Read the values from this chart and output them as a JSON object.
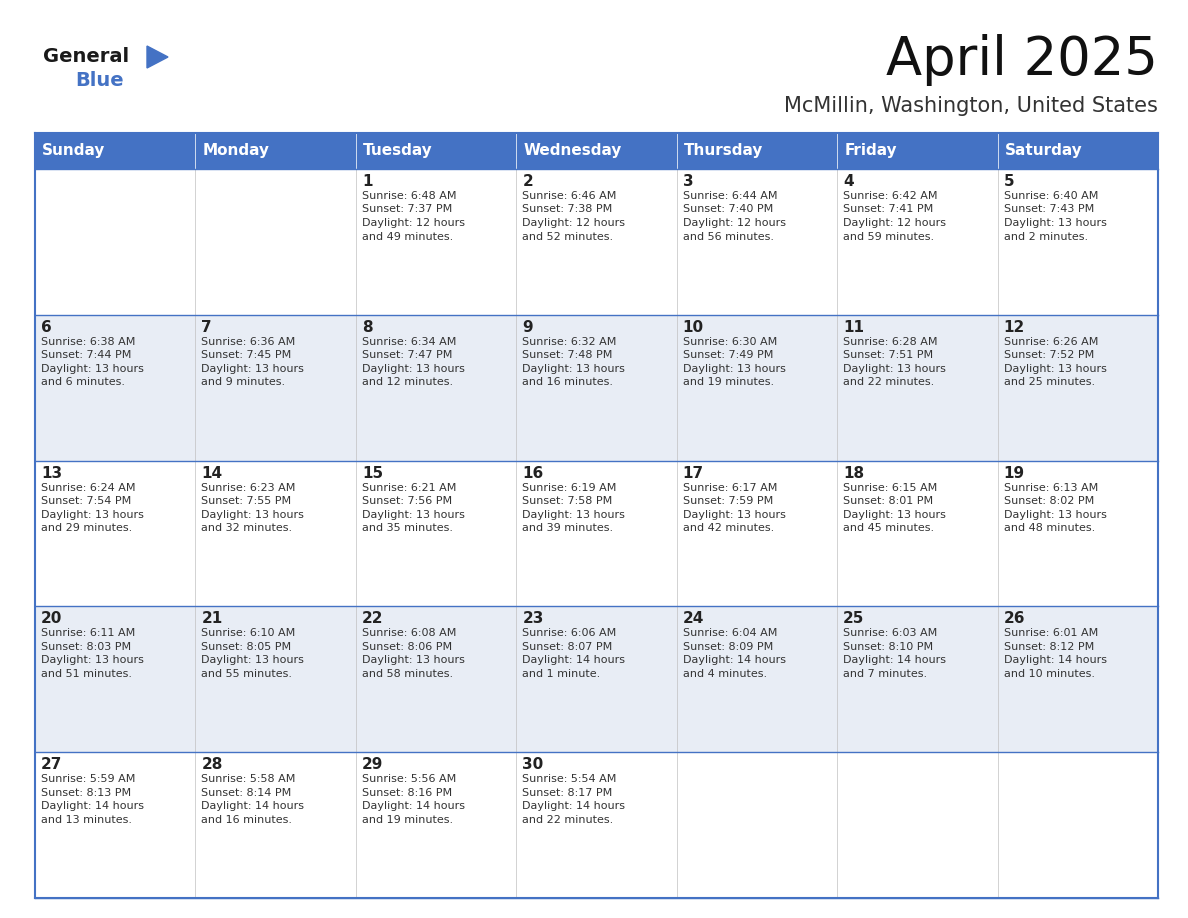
{
  "title": "April 2025",
  "subtitle": "McMillin, Washington, United States",
  "header_color": "#4472C4",
  "header_text_color": "#FFFFFF",
  "bg_color": "#FFFFFF",
  "row0_color": "#FFFFFF",
  "row1_color": "#E8EDF5",
  "border_color": "#4472C4",
  "cell_border_color": "#AAAAAA",
  "days_of_week": [
    "Sunday",
    "Monday",
    "Tuesday",
    "Wednesday",
    "Thursday",
    "Friday",
    "Saturday"
  ],
  "title_fontsize": 38,
  "subtitle_fontsize": 15,
  "day_num_fontsize": 11,
  "info_fontsize": 8,
  "header_fontsize": 11,
  "calendar": [
    [
      {
        "day": "",
        "info": ""
      },
      {
        "day": "",
        "info": ""
      },
      {
        "day": "1",
        "info": "Sunrise: 6:48 AM\nSunset: 7:37 PM\nDaylight: 12 hours\nand 49 minutes."
      },
      {
        "day": "2",
        "info": "Sunrise: 6:46 AM\nSunset: 7:38 PM\nDaylight: 12 hours\nand 52 minutes."
      },
      {
        "day": "3",
        "info": "Sunrise: 6:44 AM\nSunset: 7:40 PM\nDaylight: 12 hours\nand 56 minutes."
      },
      {
        "day": "4",
        "info": "Sunrise: 6:42 AM\nSunset: 7:41 PM\nDaylight: 12 hours\nand 59 minutes."
      },
      {
        "day": "5",
        "info": "Sunrise: 6:40 AM\nSunset: 7:43 PM\nDaylight: 13 hours\nand 2 minutes."
      }
    ],
    [
      {
        "day": "6",
        "info": "Sunrise: 6:38 AM\nSunset: 7:44 PM\nDaylight: 13 hours\nand 6 minutes."
      },
      {
        "day": "7",
        "info": "Sunrise: 6:36 AM\nSunset: 7:45 PM\nDaylight: 13 hours\nand 9 minutes."
      },
      {
        "day": "8",
        "info": "Sunrise: 6:34 AM\nSunset: 7:47 PM\nDaylight: 13 hours\nand 12 minutes."
      },
      {
        "day": "9",
        "info": "Sunrise: 6:32 AM\nSunset: 7:48 PM\nDaylight: 13 hours\nand 16 minutes."
      },
      {
        "day": "10",
        "info": "Sunrise: 6:30 AM\nSunset: 7:49 PM\nDaylight: 13 hours\nand 19 minutes."
      },
      {
        "day": "11",
        "info": "Sunrise: 6:28 AM\nSunset: 7:51 PM\nDaylight: 13 hours\nand 22 minutes."
      },
      {
        "day": "12",
        "info": "Sunrise: 6:26 AM\nSunset: 7:52 PM\nDaylight: 13 hours\nand 25 minutes."
      }
    ],
    [
      {
        "day": "13",
        "info": "Sunrise: 6:24 AM\nSunset: 7:54 PM\nDaylight: 13 hours\nand 29 minutes."
      },
      {
        "day": "14",
        "info": "Sunrise: 6:23 AM\nSunset: 7:55 PM\nDaylight: 13 hours\nand 32 minutes."
      },
      {
        "day": "15",
        "info": "Sunrise: 6:21 AM\nSunset: 7:56 PM\nDaylight: 13 hours\nand 35 minutes."
      },
      {
        "day": "16",
        "info": "Sunrise: 6:19 AM\nSunset: 7:58 PM\nDaylight: 13 hours\nand 39 minutes."
      },
      {
        "day": "17",
        "info": "Sunrise: 6:17 AM\nSunset: 7:59 PM\nDaylight: 13 hours\nand 42 minutes."
      },
      {
        "day": "18",
        "info": "Sunrise: 6:15 AM\nSunset: 8:01 PM\nDaylight: 13 hours\nand 45 minutes."
      },
      {
        "day": "19",
        "info": "Sunrise: 6:13 AM\nSunset: 8:02 PM\nDaylight: 13 hours\nand 48 minutes."
      }
    ],
    [
      {
        "day": "20",
        "info": "Sunrise: 6:11 AM\nSunset: 8:03 PM\nDaylight: 13 hours\nand 51 minutes."
      },
      {
        "day": "21",
        "info": "Sunrise: 6:10 AM\nSunset: 8:05 PM\nDaylight: 13 hours\nand 55 minutes."
      },
      {
        "day": "22",
        "info": "Sunrise: 6:08 AM\nSunset: 8:06 PM\nDaylight: 13 hours\nand 58 minutes."
      },
      {
        "day": "23",
        "info": "Sunrise: 6:06 AM\nSunset: 8:07 PM\nDaylight: 14 hours\nand 1 minute."
      },
      {
        "day": "24",
        "info": "Sunrise: 6:04 AM\nSunset: 8:09 PM\nDaylight: 14 hours\nand 4 minutes."
      },
      {
        "day": "25",
        "info": "Sunrise: 6:03 AM\nSunset: 8:10 PM\nDaylight: 14 hours\nand 7 minutes."
      },
      {
        "day": "26",
        "info": "Sunrise: 6:01 AM\nSunset: 8:12 PM\nDaylight: 14 hours\nand 10 minutes."
      }
    ],
    [
      {
        "day": "27",
        "info": "Sunrise: 5:59 AM\nSunset: 8:13 PM\nDaylight: 14 hours\nand 13 minutes."
      },
      {
        "day": "28",
        "info": "Sunrise: 5:58 AM\nSunset: 8:14 PM\nDaylight: 14 hours\nand 16 minutes."
      },
      {
        "day": "29",
        "info": "Sunrise: 5:56 AM\nSunset: 8:16 PM\nDaylight: 14 hours\nand 19 minutes."
      },
      {
        "day": "30",
        "info": "Sunrise: 5:54 AM\nSunset: 8:17 PM\nDaylight: 14 hours\nand 22 minutes."
      },
      {
        "day": "",
        "info": ""
      },
      {
        "day": "",
        "info": ""
      },
      {
        "day": "",
        "info": ""
      }
    ]
  ]
}
